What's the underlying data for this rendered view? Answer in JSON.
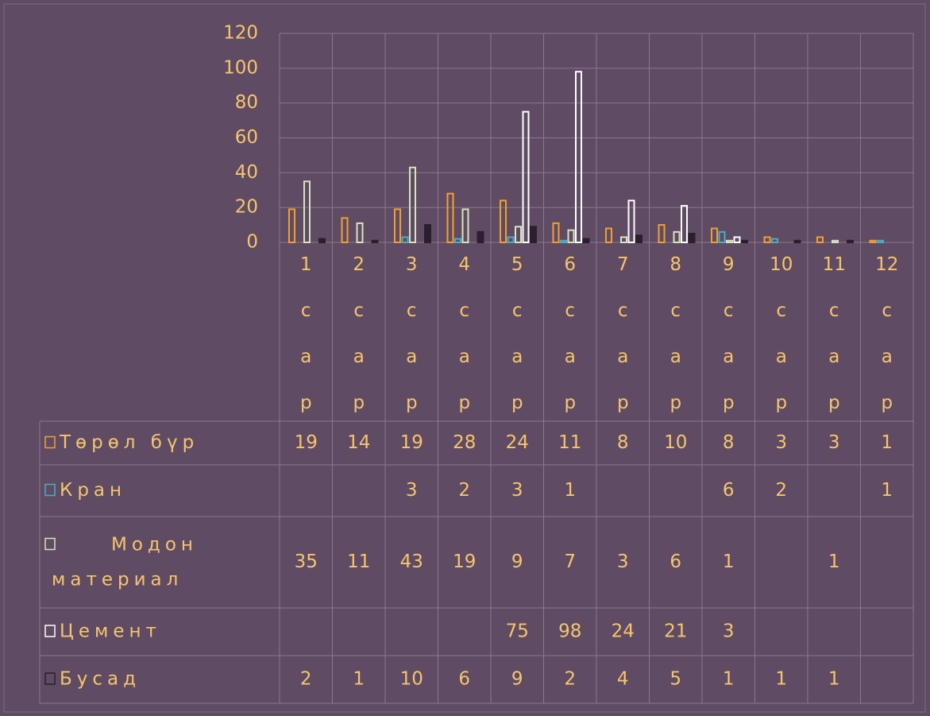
{
  "chart_data": {
    "type": "bar",
    "categories": [
      "1 сар",
      "2 сар",
      "3 сар",
      "4 сар",
      "5 сар",
      "6 сар",
      "7 сар",
      "8 сар",
      "9 сар",
      "10 сар",
      "11 сар",
      "12 сар"
    ],
    "series": [
      {
        "name": "Төрөл бүр",
        "color": "#f0a033",
        "values": [
          19,
          14,
          19,
          28,
          24,
          11,
          8,
          10,
          8,
          3,
          3,
          1
        ]
      },
      {
        "name": "Кран",
        "color": "#4bacc6",
        "values": [
          null,
          null,
          3,
          2,
          3,
          1,
          null,
          null,
          6,
          2,
          null,
          1
        ]
      },
      {
        "name": "Модон материал",
        "color": "#d7e4bd",
        "values": [
          35,
          11,
          43,
          19,
          9,
          7,
          3,
          6,
          1,
          null,
          1,
          null
        ]
      },
      {
        "name": "Цемент",
        "color": "#ffffff",
        "values": [
          null,
          null,
          null,
          null,
          75,
          98,
          24,
          21,
          3,
          null,
          null,
          null
        ]
      },
      {
        "name": "Бусад",
        "color": "#2b1f2d",
        "values": [
          2,
          1,
          10,
          6,
          9,
          2,
          4,
          5,
          1,
          1,
          1,
          null
        ]
      }
    ],
    "ylim": [
      0,
      120
    ],
    "yticks": [
      0,
      20,
      40,
      60,
      80,
      100,
      120
    ],
    "grid": true
  }
}
